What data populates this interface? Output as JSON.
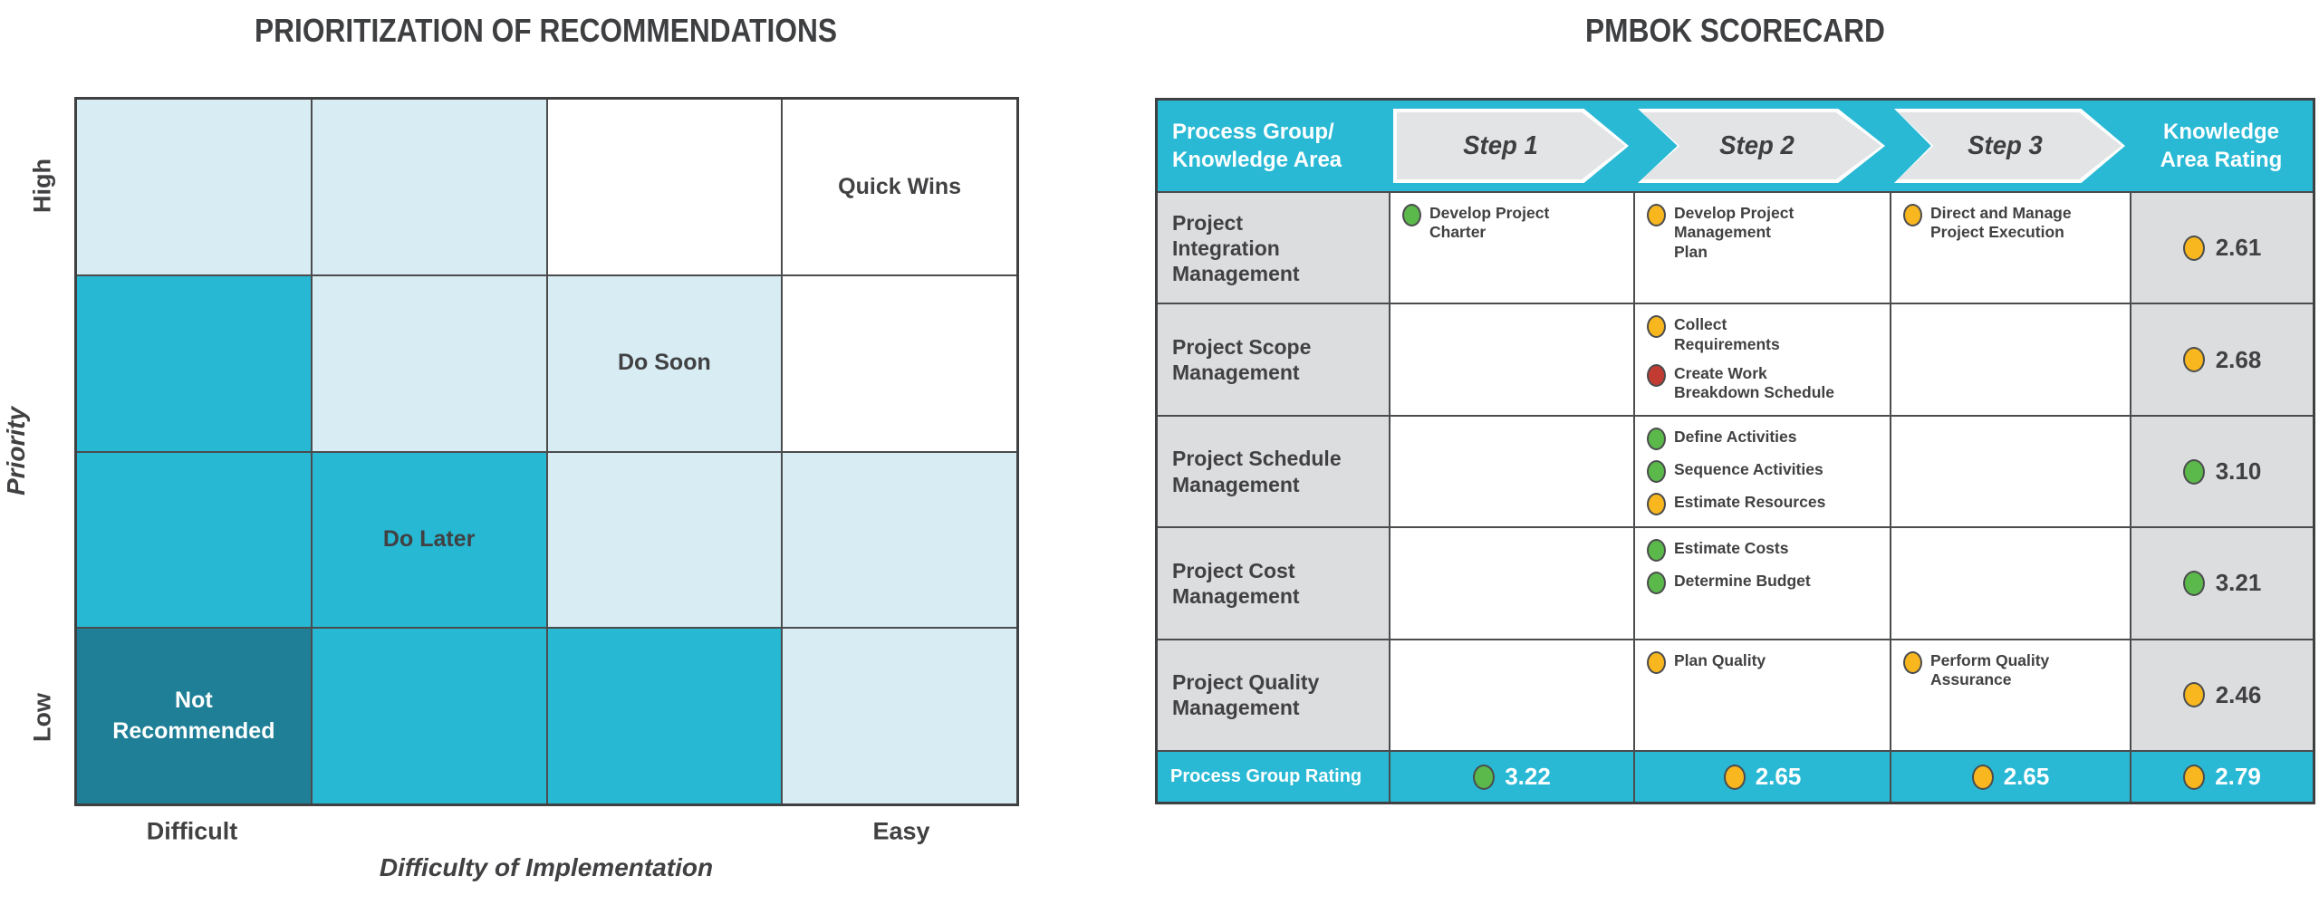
{
  "left_panel": {
    "title": "PRIORITIZATION OF RECOMMENDATIONS",
    "y_axis": {
      "title": "Priority",
      "top_label": "High",
      "bottom_label": "Low"
    },
    "x_axis": {
      "title": "Difficulty of Implementation",
      "left_label": "Difficult",
      "right_label": "Easy"
    },
    "colors": {
      "light": "#D7ECF3",
      "mid": "#27B8D3",
      "dark": "#1E7F96",
      "white": "#FFFFFF"
    },
    "matrix": [
      [
        {
          "color": "light"
        },
        {
          "color": "light"
        },
        {
          "color": "white"
        },
        {
          "color": "white",
          "label": "Quick Wins"
        }
      ],
      [
        {
          "color": "mid"
        },
        {
          "color": "light"
        },
        {
          "color": "light",
          "label": "Do Soon"
        },
        {
          "color": "white"
        }
      ],
      [
        {
          "color": "mid"
        },
        {
          "color": "mid",
          "label": "Do Later"
        },
        {
          "color": "light"
        },
        {
          "color": "light"
        }
      ],
      [
        {
          "color": "dark",
          "label": "Not\nRecommended"
        },
        {
          "color": "mid"
        },
        {
          "color": "mid"
        },
        {
          "color": "light"
        }
      ]
    ]
  },
  "right_panel": {
    "title": "PMBOK SCORECARD",
    "header": {
      "col1": "Process Group/\nKnowledge Area",
      "steps": [
        "Step 1",
        "Step 2",
        "Step 3"
      ],
      "col5": "Knowledge\nArea Rating"
    },
    "legend_colors": {
      "green": "#5BB84B",
      "yellow": "#F8B71E",
      "red": "#C23B33"
    },
    "accent_cyan": "#29B9D5",
    "rows": [
      {
        "area": "Project\nIntegration\nManagement",
        "step1": [
          {
            "color": "green",
            "text": "Develop Project\nCharter"
          }
        ],
        "step2": [
          {
            "color": "yellow",
            "text": "Develop Project\nManagement\nPlan"
          }
        ],
        "step3": [
          {
            "color": "yellow",
            "text": "Direct and Manage\nProject Execution"
          }
        ],
        "rating": {
          "color": "yellow",
          "value": "2.61"
        }
      },
      {
        "area": "Project Scope\nManagement",
        "step1": [],
        "step2": [
          {
            "color": "yellow",
            "text": "Collect\nRequirements"
          },
          {
            "color": "red",
            "text": "Create Work\nBreakdown Schedule"
          }
        ],
        "step3": [],
        "rating": {
          "color": "yellow",
          "value": "2.68"
        }
      },
      {
        "area": "Project Schedule\nManagement",
        "step1": [],
        "step2": [
          {
            "color": "green",
            "text": "Define Activities"
          },
          {
            "color": "green",
            "text": "Sequence Activities"
          },
          {
            "color": "yellow",
            "text": "Estimate Resources"
          }
        ],
        "step3": [],
        "rating": {
          "color": "green",
          "value": "3.10"
        }
      },
      {
        "area": "Project Cost\nManagement",
        "step1": [],
        "step2": [
          {
            "color": "green",
            "text": "Estimate Costs"
          },
          {
            "color": "green",
            "text": "Determine Budget"
          }
        ],
        "step3": [],
        "rating": {
          "color": "green",
          "value": "3.21"
        }
      },
      {
        "area": "Project Quality\nManagement",
        "step1": [],
        "step2": [
          {
            "color": "yellow",
            "text": "Plan Quality"
          }
        ],
        "step3": [
          {
            "color": "yellow",
            "text": "Perform Quality\nAssurance"
          }
        ],
        "rating": {
          "color": "yellow",
          "value": "2.46"
        }
      }
    ],
    "footer": {
      "label": "Process Group Rating",
      "values": [
        {
          "color": "green",
          "value": "3.22"
        },
        {
          "color": "yellow",
          "value": "2.65"
        },
        {
          "color": "yellow",
          "value": "2.65"
        },
        {
          "color": "yellow",
          "value": "2.79"
        }
      ]
    }
  },
  "chart_data": [
    {
      "type": "heatmap",
      "title": "PRIORITIZATION OF RECOMMENDATIONS",
      "xlabel": "Difficulty of Implementation",
      "ylabel": "Priority",
      "x_axis_endpoints": [
        "Difficult",
        "Easy"
      ],
      "y_axis_endpoints": [
        "High",
        "Low"
      ],
      "grid_size": "4x4",
      "cell_shading_by_row_top_to_bottom": [
        [
          "light",
          "light",
          "none",
          "none"
        ],
        [
          "medium",
          "light",
          "light",
          "none"
        ],
        [
          "medium",
          "medium",
          "light",
          "light"
        ],
        [
          "dark",
          "medium",
          "medium",
          "light"
        ]
      ],
      "annotations": [
        {
          "row": 1,
          "col": 4,
          "text": "Quick Wins"
        },
        {
          "row": 2,
          "col": 3,
          "text": "Do Soon"
        },
        {
          "row": 3,
          "col": 2,
          "text": "Do Later"
        },
        {
          "row": 4,
          "col": 1,
          "text": "Not Recommended"
        }
      ],
      "legend_position": "none",
      "grid": true
    },
    {
      "type": "table",
      "title": "PMBOK SCORECARD",
      "columns": [
        "Process Group/Knowledge Area",
        "Step 1",
        "Step 2",
        "Step 3",
        "Knowledge Area Rating"
      ],
      "rows": [
        {
          "area": "Project Integration Management",
          "step1": [
            {
              "status": "green",
              "process": "Develop Project Charter"
            }
          ],
          "step2": [
            {
              "status": "yellow",
              "process": "Develop Project Management Plan"
            }
          ],
          "step3": [
            {
              "status": "yellow",
              "process": "Direct and Manage Project Execution"
            }
          ],
          "knowledge_area_rating": {
            "status": "yellow",
            "value": 2.61
          }
        },
        {
          "area": "Project Scope Management",
          "step1": [],
          "step2": [
            {
              "status": "yellow",
              "process": "Collect Requirements"
            },
            {
              "status": "red",
              "process": "Create Work Breakdown Schedule"
            }
          ],
          "step3": [],
          "knowledge_area_rating": {
            "status": "yellow",
            "value": 2.68
          }
        },
        {
          "area": "Project Schedule Management",
          "step1": [],
          "step2": [
            {
              "status": "green",
              "process": "Define Activities"
            },
            {
              "status": "green",
              "process": "Sequence Activities"
            },
            {
              "status": "yellow",
              "process": "Estimate Resources"
            }
          ],
          "step3": [],
          "knowledge_area_rating": {
            "status": "green",
            "value": 3.1
          }
        },
        {
          "area": "Project Cost Management",
          "step1": [],
          "step2": [
            {
              "status": "green",
              "process": "Estimate Costs"
            },
            {
              "status": "green",
              "process": "Determine Budget"
            }
          ],
          "step3": [],
          "knowledge_area_rating": {
            "status": "green",
            "value": 3.21
          }
        },
        {
          "area": "Project Quality Management",
          "step1": [],
          "step2": [
            {
              "status": "yellow",
              "process": "Plan Quality"
            }
          ],
          "step3": [
            {
              "status": "yellow",
              "process": "Perform Quality Assurance"
            }
          ],
          "knowledge_area_rating": {
            "status": "yellow",
            "value": 2.46
          }
        }
      ],
      "footer": {
        "label": "Process Group Rating",
        "step1": {
          "status": "green",
          "value": 3.22
        },
        "step2": {
          "status": "yellow",
          "value": 2.65
        },
        "step3": {
          "status": "yellow",
          "value": 2.65
        },
        "knowledge_area_rating": {
          "status": "yellow",
          "value": 2.79
        }
      }
    }
  ]
}
